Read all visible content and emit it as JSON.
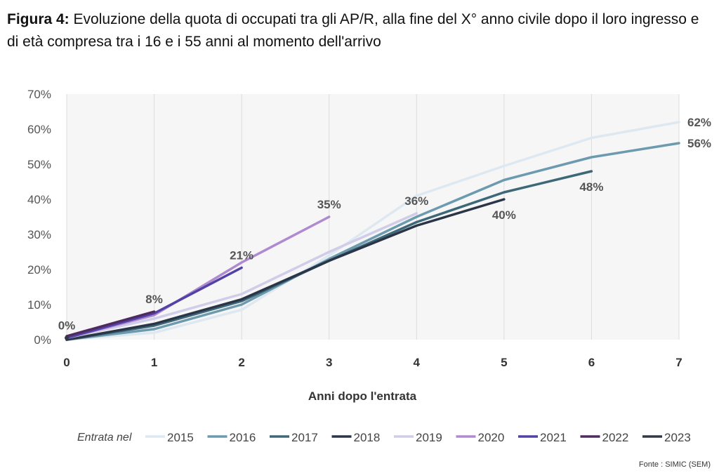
{
  "title": {
    "prefix": "Figura 4:",
    "text": " Evoluzione della quota di occupati tra gli AP/R, alla fine del X° anno civile dopo il loro ingresso e di età compresa tra i 16 e i 55 anni al momento dell'arrivo"
  },
  "source": "Fonte : SIMIC (SEM)",
  "chart_data": {
    "type": "line",
    "xlabel": "Anni dopo l'entrata",
    "ylabel": "",
    "xlim": [
      0,
      7
    ],
    "ylim": [
      0,
      70
    ],
    "x_ticks": [
      "0",
      "1",
      "2",
      "3",
      "4",
      "5",
      "6",
      "7"
    ],
    "y_ticks": [
      "0%",
      "10%",
      "20%",
      "30%",
      "40%",
      "50%",
      "60%",
      "70%"
    ],
    "legend_title": "Entrata nel",
    "grid": "vertical",
    "series": [
      {
        "name": "2015",
        "color": "#dde8f0",
        "x": [
          0,
          1,
          2,
          3,
          4,
          5,
          6,
          7
        ],
        "values": [
          0,
          2,
          8.5,
          24,
          41,
          49.5,
          57.5,
          62
        ]
      },
      {
        "name": "2016",
        "color": "#6c9aae",
        "x": [
          0,
          1,
          2,
          3,
          4,
          5,
          6,
          7
        ],
        "values": [
          0,
          3,
          10,
          23,
          35,
          45.5,
          52,
          56
        ]
      },
      {
        "name": "2017",
        "color": "#3e6878",
        "x": [
          0,
          1,
          2,
          3,
          4,
          5,
          6
        ],
        "values": [
          0,
          4,
          11,
          22.5,
          33.5,
          42,
          48
        ]
      },
      {
        "name": "2018",
        "color": "#2a3548",
        "x": [
          0,
          1,
          2,
          3,
          4,
          5
        ],
        "values": [
          0,
          4.5,
          11.5,
          22.5,
          32.5,
          40
        ]
      },
      {
        "name": "2019",
        "color": "#cfcde8",
        "x": [
          0,
          1,
          2,
          3,
          4
        ],
        "values": [
          0.5,
          6,
          13,
          25,
          36
        ]
      },
      {
        "name": "2020",
        "color": "#b08ad0",
        "x": [
          0,
          1,
          2,
          3
        ],
        "values": [
          0.5,
          7,
          22,
          35
        ]
      },
      {
        "name": "2021",
        "color": "#5242a6",
        "x": [
          0,
          1,
          2
        ],
        "values": [
          0.5,
          7.5,
          20.5
        ]
      },
      {
        "name": "2022",
        "color": "#4f2a5e",
        "x": [
          0,
          1
        ],
        "values": [
          1,
          8
        ]
      },
      {
        "name": "2023",
        "color": "#333844",
        "x": [
          0
        ],
        "values": [
          0.5
        ]
      }
    ],
    "annotations": [
      {
        "text": "0%",
        "x": 0,
        "y": 0.5,
        "anchor": "above"
      },
      {
        "text": "8%",
        "x": 1,
        "y": 8,
        "anchor": "above"
      },
      {
        "text": "21%",
        "x": 2,
        "y": 20.5,
        "anchor": "above"
      },
      {
        "text": "35%",
        "x": 3,
        "y": 35,
        "anchor": "above"
      },
      {
        "text": "36%",
        "x": 4,
        "y": 36,
        "anchor": "above"
      },
      {
        "text": "40%",
        "x": 5,
        "y": 40,
        "anchor": "below"
      },
      {
        "text": "48%",
        "x": 6,
        "y": 48,
        "anchor": "below"
      },
      {
        "text": "56%",
        "x": 7,
        "y": 56,
        "anchor": "right"
      },
      {
        "text": "62%",
        "x": 7,
        "y": 62,
        "anchor": "right"
      }
    ]
  }
}
